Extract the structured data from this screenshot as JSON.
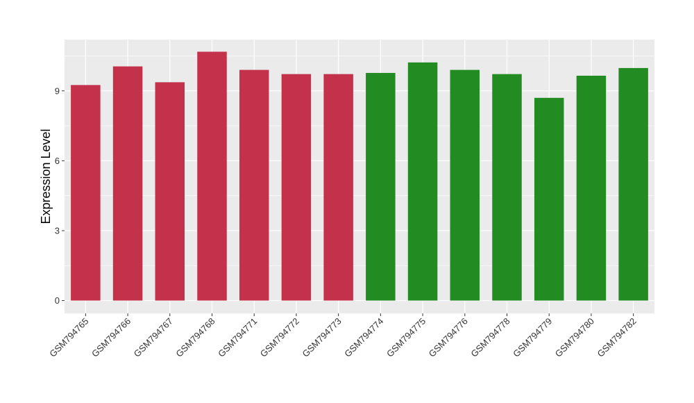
{
  "chart_data": {
    "type": "bar",
    "title": "",
    "xlabel": "",
    "ylabel": "Expression Level",
    "ylim": [
      -0.55,
      11.2
    ],
    "yticks": [
      0,
      3,
      6,
      9
    ],
    "ytick_labels": [
      "0",
      "3",
      "6",
      "9"
    ],
    "grid": true,
    "legend": "none",
    "categories": [
      "GSM794765",
      "GSM794766",
      "GSM794767",
      "GSM794768",
      "GSM794771",
      "GSM794772",
      "GSM794773",
      "GSM794774",
      "GSM794775",
      "GSM794776",
      "GSM794778",
      "GSM794779",
      "GSM794780",
      "GSM794782"
    ],
    "values": [
      9.25,
      10.05,
      9.37,
      10.68,
      9.9,
      9.72,
      9.72,
      9.77,
      10.22,
      9.9,
      9.72,
      8.7,
      9.65,
      9.98
    ],
    "bar_colors": [
      "#c3314a",
      "#c3314a",
      "#c3314a",
      "#c3314a",
      "#c3314a",
      "#c3314a",
      "#c3314a",
      "#228b22",
      "#228b22",
      "#228b22",
      "#228b22",
      "#228b22",
      "#228b22",
      "#228b22"
    ],
    "panel_background": "#ebebeb",
    "gridline_color": "#ffffff"
  }
}
